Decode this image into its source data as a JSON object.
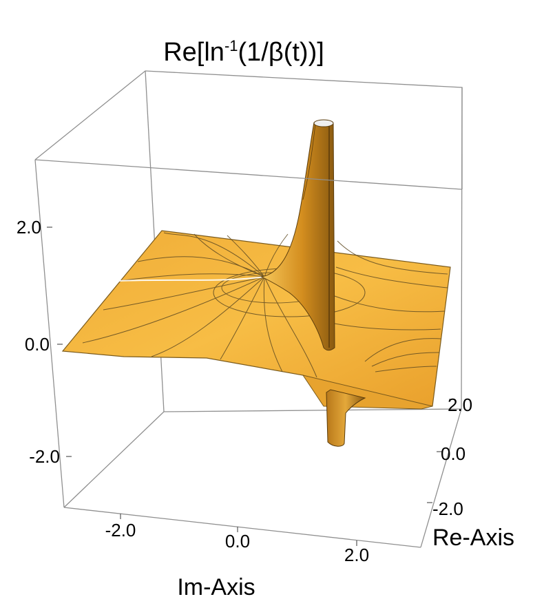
{
  "chart_data": {
    "type": "surface3d",
    "title": {
      "prefix": "Re[ln",
      "superscript": "-1",
      "suffix": "(1/β(t))]"
    },
    "xlabel": "Im-Axis",
    "ylabel": "Re-Axis",
    "zlabel": "",
    "x_ticks": [
      "-2.0",
      "0.0",
      "2.0"
    ],
    "y_ticks": [
      "-2.0",
      "0.0",
      "2.0"
    ],
    "z_ticks": [
      "-2.0",
      "0.0",
      "2.0"
    ],
    "x_range": [
      -3,
      3
    ],
    "y_range": [
      -3,
      3
    ],
    "z_range": [
      -3,
      3
    ],
    "surface_color": "#f3b23a",
    "mesh": "contour lines",
    "features": [
      {
        "kind": "pole",
        "direction": "up"
      },
      {
        "kind": "pole",
        "direction": "down"
      }
    ]
  }
}
